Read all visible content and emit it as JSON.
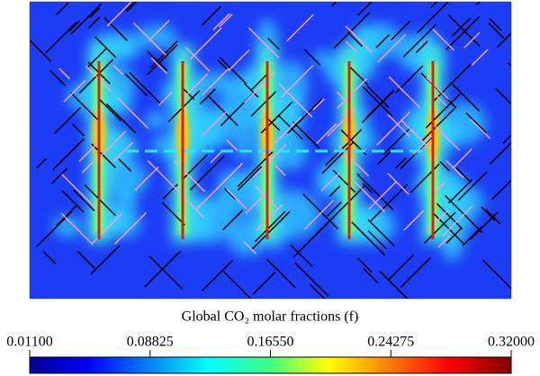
{
  "chart_data": {
    "type": "heatmap",
    "colorbar_label": "Global CO₂ molar fractions (f)",
    "colormap": "jet",
    "clim": [
      0.011,
      0.32
    ],
    "cticks": [
      {
        "value": 0.011,
        "label": "0.01100"
      },
      {
        "value": 0.08825,
        "label": "0.08825"
      },
      {
        "value": 0.1655,
        "label": "0.16550"
      },
      {
        "value": 0.24275,
        "label": "0.24275"
      },
      {
        "value": 0.32,
        "label": "0.32000"
      }
    ]
  }
}
